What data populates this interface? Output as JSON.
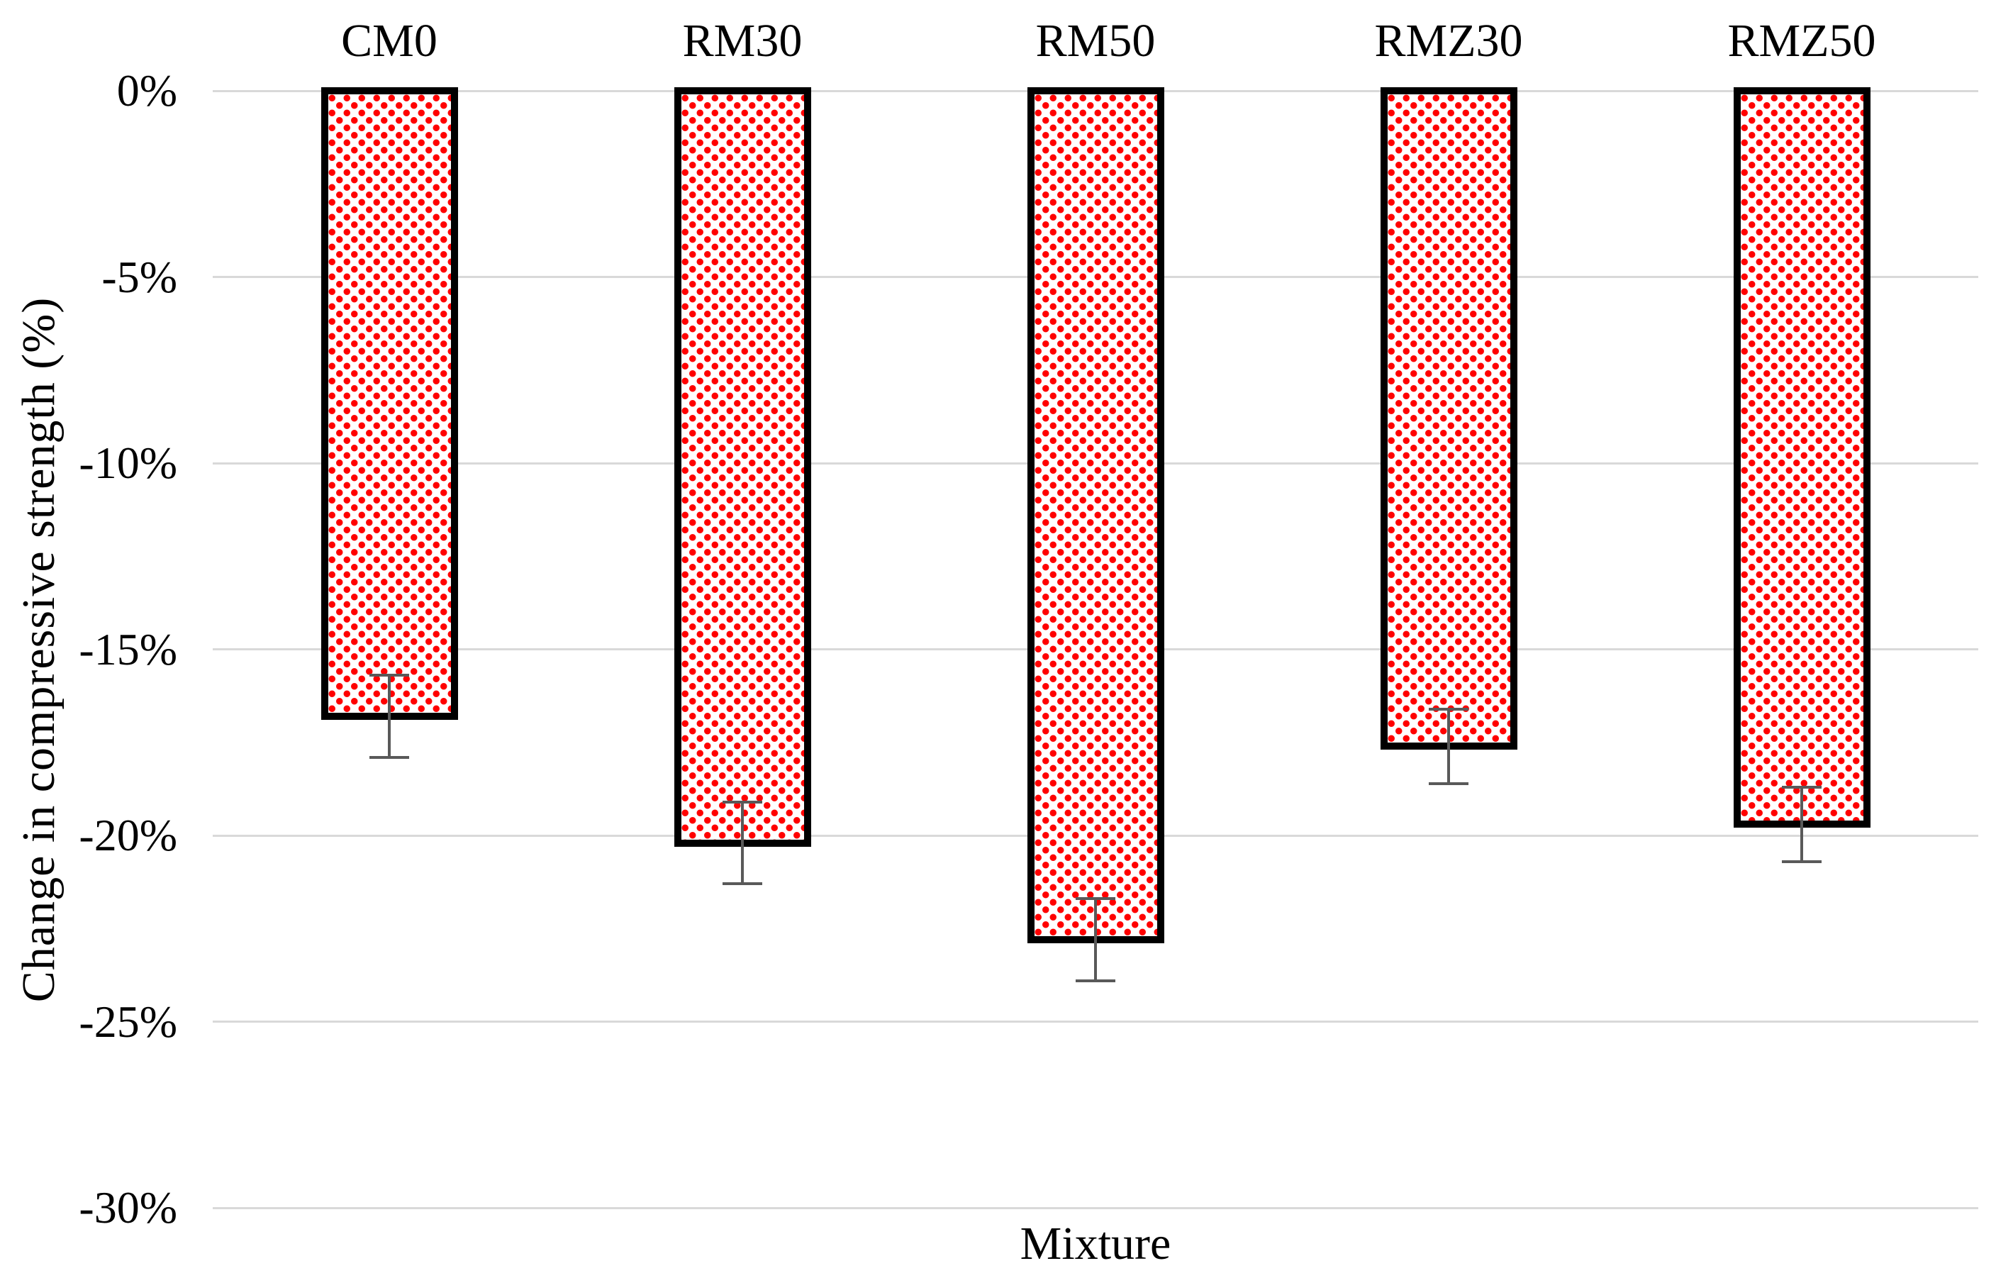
{
  "chart_data": {
    "type": "bar",
    "orientation": "vertical",
    "title": "",
    "xlabel": "Mixture",
    "ylabel": "Change in compressive strength (%)",
    "categories": [
      "CM0",
      "RM30",
      "RM50",
      "RMZ30",
      "RMZ50"
    ],
    "values": [
      -16.8,
      -20.2,
      -22.8,
      -17.6,
      -19.7
    ],
    "error_bars_pct": [
      1.1,
      1.1,
      1.1,
      1.0,
      1.0
    ],
    "ylim": [
      -30,
      0
    ],
    "ytick_step": 5,
    "yticks": [
      "0%",
      "-5%",
      "-10%",
      "-15%",
      "-20%",
      "-25%",
      "-30%"
    ],
    "grid": true,
    "legend": "none",
    "bar_fill_pattern": "red-dot-pattern-on-white",
    "colors": {
      "bar_dot": "#FF0000",
      "bar_background": "#FFFFFF",
      "bar_border": "#000000",
      "error_bar": "#595959",
      "gridline": "#D9D9D9",
      "text": "#000000",
      "background": "#FFFFFF"
    }
  }
}
